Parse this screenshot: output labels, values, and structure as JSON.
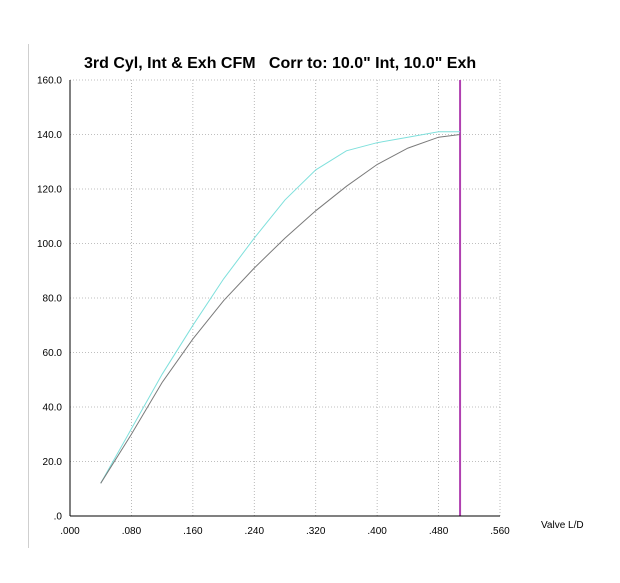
{
  "chart_data": {
    "type": "line",
    "title": "3rd Cyl, Int & Exh CFM   Corr to: 10.0\" Int, 10.0\" Exh",
    "xlabel": "Valve L/D",
    "ylabel": "",
    "xlim": [
      0,
      0.56
    ],
    "ylim": [
      0,
      160
    ],
    "grid": true,
    "x_ticks": [
      {
        "value": 0.0,
        "label": ".000"
      },
      {
        "value": 0.08,
        "label": ".080"
      },
      {
        "value": 0.16,
        "label": ".160"
      },
      {
        "value": 0.24,
        "label": ".240"
      },
      {
        "value": 0.32,
        "label": ".320"
      },
      {
        "value": 0.4,
        "label": ".400"
      },
      {
        "value": 0.48,
        "label": ".480"
      },
      {
        "value": 0.56,
        "label": ".560"
      }
    ],
    "y_ticks": [
      {
        "value": 0,
        "label": ".0"
      },
      {
        "value": 20,
        "label": "20.0"
      },
      {
        "value": 40,
        "label": "40.0"
      },
      {
        "value": 60,
        "label": "60.0"
      },
      {
        "value": 80,
        "label": "80.0"
      },
      {
        "value": 100,
        "label": "100.0"
      },
      {
        "value": 120,
        "label": "120.0"
      },
      {
        "value": 140,
        "label": "140.0"
      },
      {
        "value": 160,
        "label": "160.0"
      }
    ],
    "series": [
      {
        "color": "#7fe0dc",
        "x": [
          0.04,
          0.08,
          0.12,
          0.16,
          0.2,
          0.24,
          0.28,
          0.32,
          0.36,
          0.4,
          0.44,
          0.48,
          0.508
        ],
        "y": [
          12,
          32,
          52,
          70,
          87,
          102,
          116,
          127,
          134,
          137,
          139,
          141,
          141
        ]
      },
      {
        "color": "#7a7a7a",
        "x": [
          0.04,
          0.08,
          0.12,
          0.16,
          0.2,
          0.24,
          0.28,
          0.32,
          0.36,
          0.4,
          0.44,
          0.48,
          0.508
        ],
        "y": [
          12,
          30,
          49,
          65,
          79,
          91,
          102,
          112,
          121,
          129,
          135,
          139,
          140
        ]
      }
    ],
    "vline": {
      "x": 0.508,
      "color": "#b040b0"
    }
  }
}
